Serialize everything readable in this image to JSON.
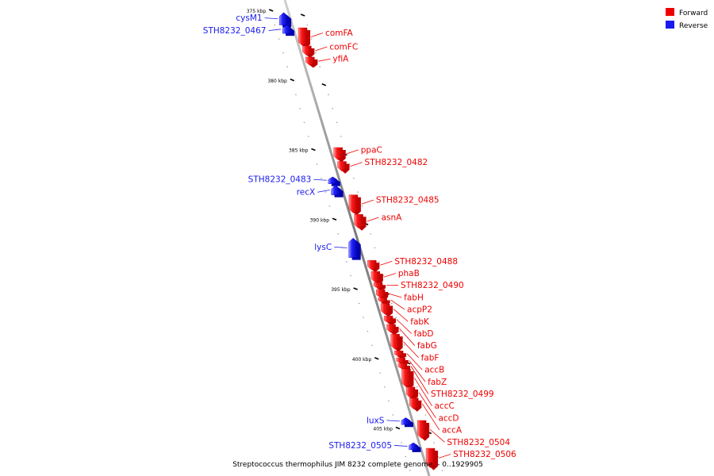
{
  "colors": {
    "forward": "#ee0000",
    "reverse": "#1a1aee",
    "backbone": "#888888",
    "tick": "#000000",
    "minor_tick": "#9a9a9a"
  },
  "legend": {
    "items": [
      {
        "label": "Forward",
        "color": "#ee0000"
      },
      {
        "label": "Reverse",
        "color": "#1a1aee"
      }
    ]
  },
  "caption": "Streptococcus thermophilus JIM 8232 complete genome. - 0..1929905",
  "ticks": [
    {
      "label": "375 kbp",
      "kbp": 375
    },
    {
      "label": "380 kbp",
      "kbp": 380
    },
    {
      "label": "385 kbp",
      "kbp": 385
    },
    {
      "label": "390 kbp",
      "kbp": 390
    },
    {
      "label": "395 kbp",
      "kbp": 395
    },
    {
      "label": "400 kbp",
      "kbp": 400
    },
    {
      "label": "405 kbp",
      "kbp": 405
    }
  ],
  "features": [
    {
      "name": "cysM1",
      "strand": "reverse",
      "start": 375.1,
      "end": 376.0
    },
    {
      "name": "STH8232_0467",
      "strand": "reverse",
      "start": 376.0,
      "end": 376.6
    },
    {
      "name": "comFA",
      "strand": "forward",
      "start": 376.2,
      "end": 377.5
    },
    {
      "name": "comFC",
      "strand": "forward",
      "start": 377.5,
      "end": 378.2
    },
    {
      "name": "yfiA",
      "strand": "forward",
      "start": 378.3,
      "end": 378.9
    },
    {
      "name": "ppaC",
      "strand": "forward",
      "start": 384.8,
      "end": 385.7
    },
    {
      "name": "STH8232_0482",
      "strand": "forward",
      "start": 385.8,
      "end": 386.5
    },
    {
      "name": "STH8232_0483",
      "strand": "reverse",
      "start": 386.9,
      "end": 387.4
    },
    {
      "name": "recX",
      "strand": "reverse",
      "start": 387.5,
      "end": 388.2
    },
    {
      "name": "STH8232_0485",
      "strand": "forward",
      "start": 388.2,
      "end": 389.5
    },
    {
      "name": "asnA",
      "strand": "forward",
      "start": 389.6,
      "end": 390.6
    },
    {
      "name": "lysC",
      "strand": "reverse",
      "start": 391.3,
      "end": 392.7
    },
    {
      "name": "STH8232_0488",
      "strand": "forward",
      "start": 392.9,
      "end": 393.6
    },
    {
      "name": "phaB",
      "strand": "forward",
      "start": 393.7,
      "end": 394.5
    },
    {
      "name": "STH8232_0490",
      "strand": "forward",
      "start": 394.5,
      "end": 394.9
    },
    {
      "name": "fabH",
      "strand": "forward",
      "start": 395.0,
      "end": 395.6
    },
    {
      "name": "acpP2",
      "strand": "forward",
      "start": 395.6,
      "end": 395.9
    },
    {
      "name": "fabK",
      "strand": "forward",
      "start": 396.0,
      "end": 396.8
    },
    {
      "name": "fabD",
      "strand": "forward",
      "start": 396.9,
      "end": 397.4
    },
    {
      "name": "fabG",
      "strand": "forward",
      "start": 397.5,
      "end": 398.1
    },
    {
      "name": "fabF",
      "strand": "forward",
      "start": 398.2,
      "end": 399.3
    },
    {
      "name": "accB",
      "strand": "forward",
      "start": 399.4,
      "end": 399.8
    },
    {
      "name": "fabZ",
      "strand": "forward",
      "start": 399.9,
      "end": 400.3
    },
    {
      "name": "STH8232_0499",
      "strand": "forward",
      "start": 400.3,
      "end": 400.7
    },
    {
      "name": "accC",
      "strand": "forward",
      "start": 400.7,
      "end": 402.0
    },
    {
      "name": "accD",
      "strand": "forward",
      "start": 402.0,
      "end": 402.8
    },
    {
      "name": "accA",
      "strand": "forward",
      "start": 402.8,
      "end": 403.6
    },
    {
      "name": "luxS",
      "strand": "reverse",
      "start": 404.2,
      "end": 404.7
    },
    {
      "name": "STH8232_0504",
      "strand": "forward",
      "start": 404.4,
      "end": 405.7
    },
    {
      "name": "STH8232_0505",
      "strand": "reverse",
      "start": 406.0,
      "end": 406.5
    },
    {
      "name": "STH8232_0506",
      "strand": "forward",
      "start": 406.4,
      "end": 407.8
    }
  ]
}
